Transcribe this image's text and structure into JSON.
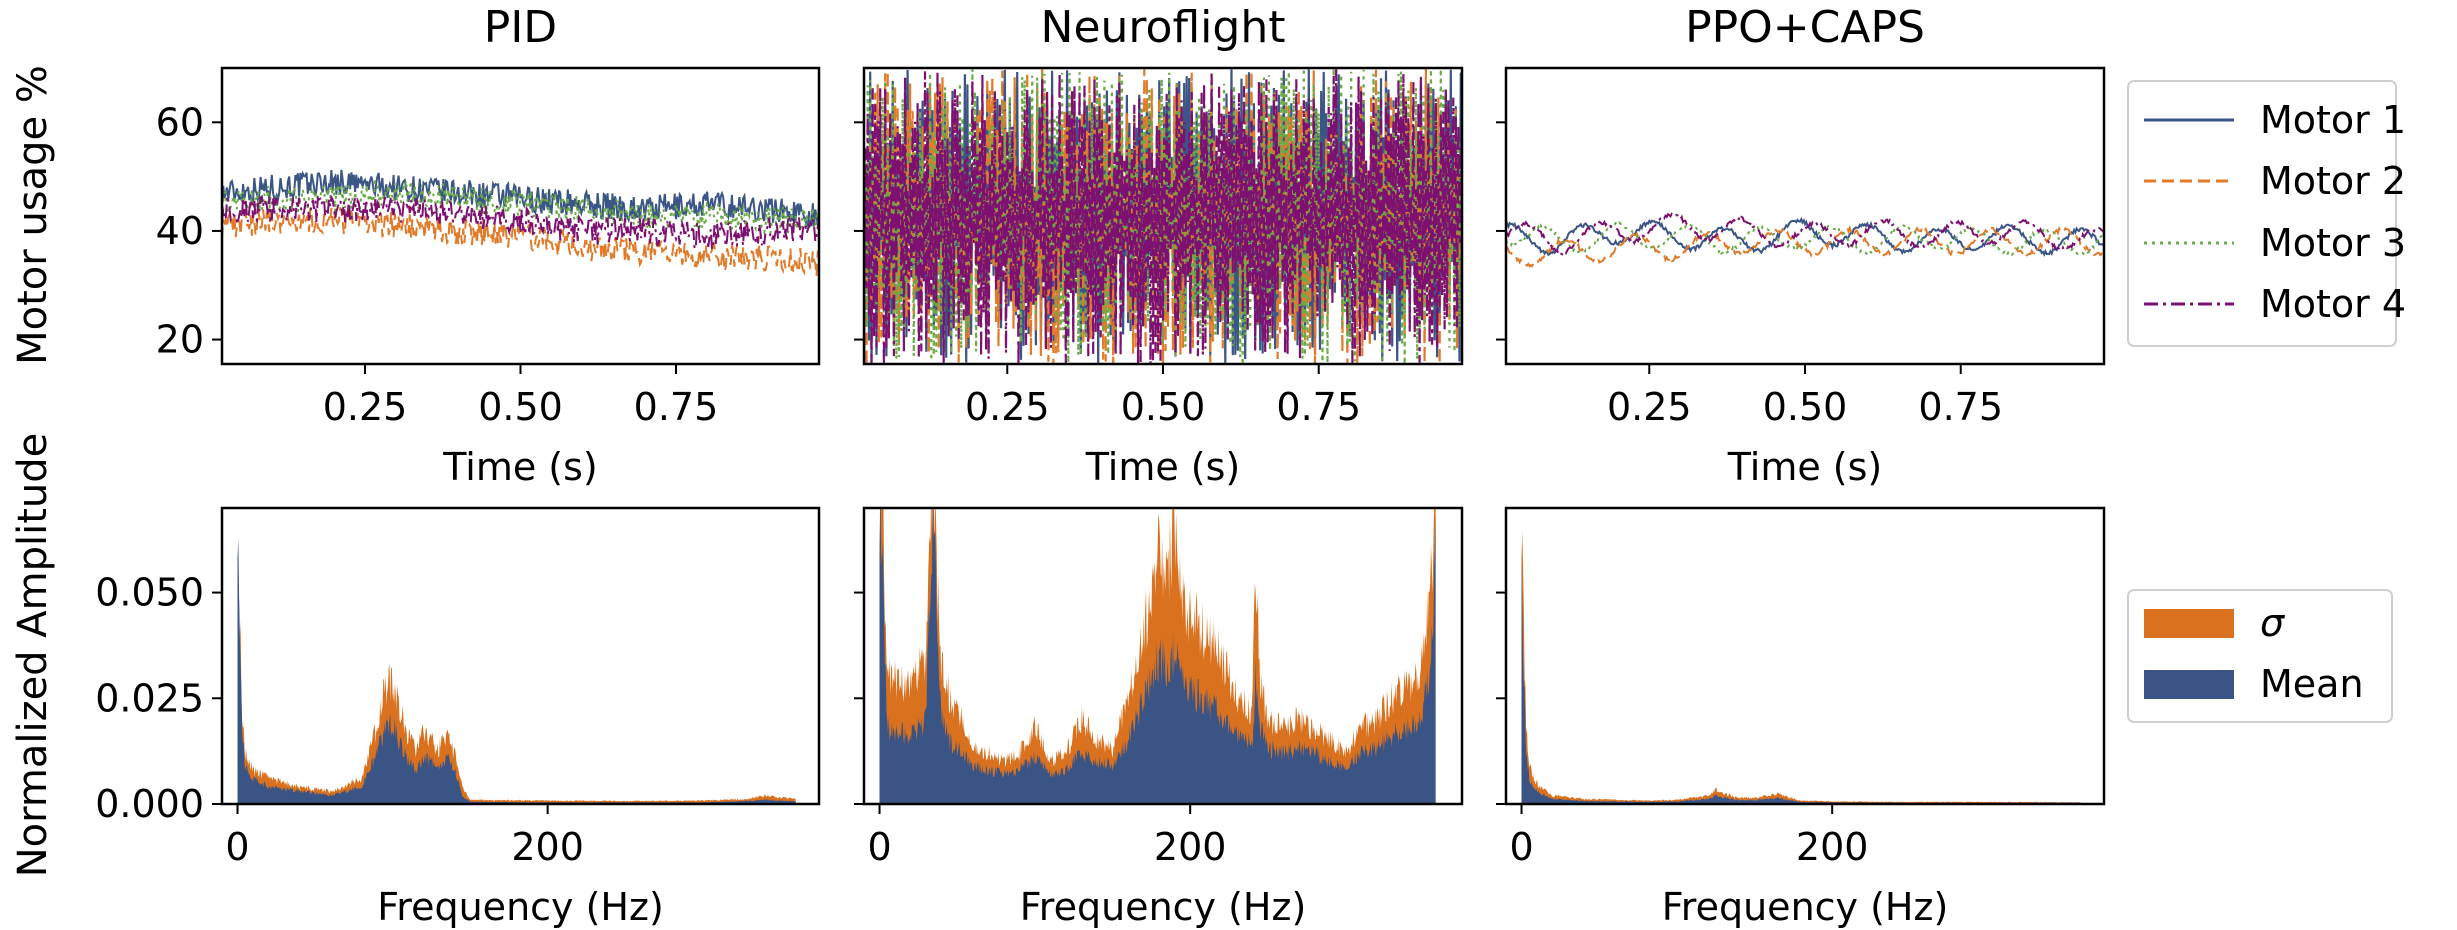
{
  "figure": {
    "top_ylabel": "Motor usage %",
    "bottom_ylabel": "Normalized Amplitude"
  },
  "legend_top": [
    {
      "label": "Motor 1",
      "color": "#3b5686",
      "dash": "solid"
    },
    {
      "label": "Motor 2",
      "color": "#e07b2a",
      "dash": "dashed"
    },
    {
      "label": "Motor 3",
      "color": "#6aab45",
      "dash": "dotted"
    },
    {
      "label": "Motor 4",
      "color": "#7d1070",
      "dash": "dashdot"
    }
  ],
  "legend_bottom": [
    {
      "label": "σ",
      "color": "#d9711f"
    },
    {
      "label": "Mean",
      "color": "#3b5486"
    }
  ],
  "chart_data": [
    {
      "type": "line",
      "panel": "time",
      "title": "PID",
      "xlabel": "Time (s)",
      "ylabel": "Motor usage %",
      "xlim": [
        0.02,
        0.98
      ],
      "ylim": [
        15.5,
        70
      ],
      "xticks": [
        0.25,
        0.5,
        0.75
      ],
      "xticklabels": [
        "0.25",
        "0.50",
        "0.75"
      ],
      "yticks": [
        20,
        40,
        60
      ],
      "series": [
        {
          "name": "Motor 1",
          "x": [
            0.02,
            0.1,
            0.2,
            0.3,
            0.4,
            0.5,
            0.6,
            0.7,
            0.8,
            0.9,
            0.98
          ],
          "values": [
            47,
            48,
            49,
            48,
            47,
            46,
            45,
            44,
            45,
            44,
            43
          ]
        },
        {
          "name": "Motor 2",
          "x": [
            0.02,
            0.1,
            0.2,
            0.3,
            0.4,
            0.5,
            0.6,
            0.7,
            0.8,
            0.9,
            0.98
          ],
          "values": [
            41,
            42,
            42,
            41,
            40,
            39,
            37,
            36,
            35,
            35,
            34
          ]
        },
        {
          "name": "Motor 3",
          "x": [
            0.02,
            0.1,
            0.2,
            0.3,
            0.4,
            0.5,
            0.6,
            0.7,
            0.8,
            0.9,
            0.98
          ],
          "values": [
            45,
            46,
            46,
            47,
            46,
            45,
            44,
            43,
            43,
            42,
            42
          ]
        },
        {
          "name": "Motor 4",
          "x": [
            0.02,
            0.1,
            0.2,
            0.3,
            0.4,
            0.5,
            0.6,
            0.7,
            0.8,
            0.9,
            0.98
          ],
          "values": [
            44,
            44,
            44,
            44,
            43,
            42,
            40,
            40,
            39,
            40,
            40
          ]
        }
      ]
    },
    {
      "type": "line",
      "panel": "time",
      "title": "Neuroflight",
      "xlabel": "Time (s)",
      "xlim": [
        0.02,
        0.98
      ],
      "ylim": [
        15.5,
        70
      ],
      "xticks": [
        0.25,
        0.5,
        0.75
      ],
      "xticklabels": [
        "0.25",
        "0.50",
        "0.75"
      ],
      "yticks": [
        20,
        40,
        60
      ],
      "series": [
        {
          "name": "Motor 1",
          "x": [
            0.02,
            0.5,
            0.98
          ],
          "values": [
            45,
            45,
            45
          ],
          "oscillation": [
            15,
            70
          ]
        },
        {
          "name": "Motor 2",
          "x": [
            0.02,
            0.5,
            0.98
          ],
          "values": [
            42,
            42,
            42
          ],
          "oscillation": [
            15,
            70
          ]
        },
        {
          "name": "Motor 3",
          "x": [
            0.02,
            0.5,
            0.98
          ],
          "values": [
            44,
            44,
            44
          ],
          "oscillation": [
            15,
            70
          ]
        },
        {
          "name": "Motor 4",
          "x": [
            0.02,
            0.5,
            0.98
          ],
          "values": [
            43,
            43,
            43
          ],
          "oscillation": [
            15,
            70
          ]
        }
      ]
    },
    {
      "type": "line",
      "panel": "time",
      "title": "PPO+CAPS",
      "xlabel": "Time (s)",
      "xlim": [
        0.02,
        0.98
      ],
      "ylim": [
        15.5,
        70
      ],
      "xticks": [
        0.25,
        0.5,
        0.75
      ],
      "xticklabels": [
        "0.25",
        "0.50",
        "0.75"
      ],
      "yticks": [
        20,
        40,
        60
      ],
      "series": [
        {
          "name": "Motor 1",
          "x": [
            0.02,
            0.1,
            0.2,
            0.3,
            0.4,
            0.5,
            0.6,
            0.7,
            0.8,
            0.9,
            0.98
          ],
          "values": [
            39,
            38,
            40,
            39,
            38,
            40,
            39,
            38,
            39,
            38,
            38
          ]
        },
        {
          "name": "Motor 2",
          "x": [
            0.02,
            0.1,
            0.2,
            0.3,
            0.4,
            0.5,
            0.6,
            0.7,
            0.8,
            0.9,
            0.98
          ],
          "values": [
            36,
            36,
            37,
            37,
            38,
            38,
            38,
            38,
            38,
            38,
            38
          ]
        },
        {
          "name": "Motor 3",
          "x": [
            0.02,
            0.1,
            0.2,
            0.3,
            0.4,
            0.5,
            0.6,
            0.7,
            0.8,
            0.9,
            0.98
          ],
          "values": [
            40,
            38,
            39,
            39,
            38,
            39,
            38,
            39,
            38,
            38,
            38
          ]
        },
        {
          "name": "Motor 4",
          "x": [
            0.02,
            0.1,
            0.2,
            0.3,
            0.4,
            0.5,
            0.6,
            0.7,
            0.8,
            0.9,
            0.98
          ],
          "values": [
            40,
            38,
            40,
            41,
            40,
            39,
            40,
            39,
            40,
            39,
            38
          ]
        }
      ]
    },
    {
      "type": "area",
      "panel": "frequency",
      "xlabel": "Frequency (Hz)",
      "ylabel": "Normalized Amplitude",
      "xlim": [
        -10,
        375
      ],
      "ylim": [
        0,
        0.07
      ],
      "xticks": [
        0,
        200
      ],
      "yticks": [
        0.0,
        0.025,
        0.05
      ],
      "yticklabels": [
        "0.000",
        "0.025",
        "0.050"
      ],
      "series": [
        {
          "name": "σ",
          "x": [
            0,
            1,
            3,
            5,
            10,
            20,
            40,
            60,
            80,
            90,
            95,
            100,
            105,
            110,
            115,
            120,
            125,
            130,
            135,
            140,
            145,
            150,
            200,
            250,
            300,
            330,
            340,
            350,
            360
          ],
          "values": [
            0.07,
            0.055,
            0.02,
            0.012,
            0.008,
            0.006,
            0.004,
            0.003,
            0.006,
            0.018,
            0.028,
            0.03,
            0.022,
            0.016,
            0.013,
            0.017,
            0.015,
            0.013,
            0.016,
            0.012,
            0.004,
            0.001,
            0.0008,
            0.0007,
            0.0008,
            0.0012,
            0.002,
            0.0015,
            0.0012
          ]
        },
        {
          "name": "Mean",
          "x": [
            0,
            1,
            3,
            5,
            10,
            20,
            40,
            60,
            80,
            90,
            95,
            100,
            105,
            110,
            115,
            120,
            125,
            130,
            135,
            140,
            145,
            150,
            200,
            250,
            300,
            330,
            340,
            350,
            360
          ],
          "values": [
            0.07,
            0.05,
            0.016,
            0.009,
            0.006,
            0.004,
            0.003,
            0.002,
            0.004,
            0.012,
            0.018,
            0.019,
            0.014,
            0.01,
            0.008,
            0.011,
            0.01,
            0.009,
            0.011,
            0.008,
            0.002,
            0.0005,
            0.0004,
            0.0004,
            0.0004,
            0.0007,
            0.001,
            0.0008,
            0.0006
          ]
        }
      ]
    },
    {
      "type": "area",
      "panel": "frequency",
      "xlabel": "Frequency (Hz)",
      "xlim": [
        -10,
        375
      ],
      "ylim": [
        0,
        0.07
      ],
      "xticks": [
        0,
        200
      ],
      "yticks": [
        0.0,
        0.025,
        0.05
      ],
      "series": [
        {
          "name": "σ",
          "x": [
            0,
            2,
            5,
            10,
            20,
            30,
            33,
            35,
            38,
            40,
            45,
            50,
            60,
            70,
            80,
            90,
            100,
            110,
            120,
            130,
            140,
            150,
            160,
            170,
            175,
            180,
            185,
            190,
            195,
            200,
            210,
            220,
            230,
            240,
            242,
            245,
            250,
            260,
            270,
            280,
            290,
            300,
            310,
            320,
            330,
            340,
            345,
            350,
            355,
            358
          ],
          "values": [
            0.07,
            0.07,
            0.03,
            0.03,
            0.028,
            0.035,
            0.07,
            0.07,
            0.045,
            0.032,
            0.025,
            0.022,
            0.014,
            0.012,
            0.01,
            0.012,
            0.018,
            0.01,
            0.012,
            0.02,
            0.015,
            0.013,
            0.025,
            0.04,
            0.05,
            0.06,
            0.055,
            0.065,
            0.05,
            0.045,
            0.04,
            0.035,
            0.025,
            0.022,
            0.058,
            0.03,
            0.02,
            0.018,
            0.02,
            0.018,
            0.015,
            0.012,
            0.018,
            0.02,
            0.025,
            0.028,
            0.03,
            0.035,
            0.055,
            0.07
          ]
        },
        {
          "name": "Mean",
          "x": [
            0,
            2,
            5,
            10,
            20,
            30,
            33,
            35,
            38,
            40,
            45,
            50,
            60,
            70,
            80,
            90,
            100,
            110,
            120,
            130,
            140,
            150,
            160,
            170,
            175,
            180,
            185,
            190,
            195,
            200,
            210,
            220,
            230,
            240,
            242,
            245,
            250,
            260,
            270,
            280,
            290,
            300,
            310,
            320,
            330,
            340,
            345,
            350,
            355,
            358
          ],
          "values": [
            0.07,
            0.06,
            0.018,
            0.017,
            0.016,
            0.02,
            0.06,
            0.07,
            0.03,
            0.02,
            0.015,
            0.013,
            0.009,
            0.008,
            0.007,
            0.008,
            0.011,
            0.007,
            0.008,
            0.012,
            0.01,
            0.009,
            0.015,
            0.024,
            0.03,
            0.035,
            0.032,
            0.036,
            0.03,
            0.027,
            0.024,
            0.021,
            0.016,
            0.014,
            0.03,
            0.018,
            0.013,
            0.012,
            0.013,
            0.012,
            0.01,
            0.009,
            0.012,
            0.013,
            0.016,
            0.018,
            0.019,
            0.022,
            0.033,
            0.065
          ]
        }
      ]
    },
    {
      "type": "area",
      "panel": "frequency",
      "xlabel": "Frequency (Hz)",
      "xlim": [
        -10,
        375
      ],
      "ylim": [
        0,
        0.07
      ],
      "xticks": [
        0,
        200
      ],
      "yticks": [
        0.0,
        0.025,
        0.05
      ],
      "series": [
        {
          "name": "σ",
          "x": [
            0,
            1,
            3,
            5,
            8,
            12,
            20,
            40,
            60,
            80,
            100,
            110,
            120,
            125,
            130,
            140,
            150,
            160,
            165,
            170,
            180,
            200,
            250,
            300,
            350,
            360
          ],
          "values": [
            0.07,
            0.05,
            0.02,
            0.01,
            0.006,
            0.004,
            0.002,
            0.0012,
            0.001,
            0.0008,
            0.001,
            0.0015,
            0.002,
            0.0035,
            0.0025,
            0.0015,
            0.0015,
            0.002,
            0.0025,
            0.0018,
            0.0008,
            0.0006,
            0.0005,
            0.0005,
            0.0004,
            0.0004
          ]
        },
        {
          "name": "Mean",
          "x": [
            0,
            1,
            3,
            5,
            8,
            12,
            20,
            40,
            60,
            80,
            100,
            110,
            120,
            125,
            130,
            140,
            150,
            160,
            165,
            170,
            180,
            200,
            250,
            300,
            350,
            360
          ],
          "values": [
            0.07,
            0.04,
            0.013,
            0.006,
            0.004,
            0.0025,
            0.0012,
            0.0007,
            0.0006,
            0.0005,
            0.0006,
            0.0009,
            0.0012,
            0.002,
            0.0015,
            0.0009,
            0.0009,
            0.0012,
            0.0014,
            0.001,
            0.0005,
            0.0004,
            0.0003,
            0.0003,
            0.0003,
            0.0003
          ]
        }
      ]
    }
  ]
}
